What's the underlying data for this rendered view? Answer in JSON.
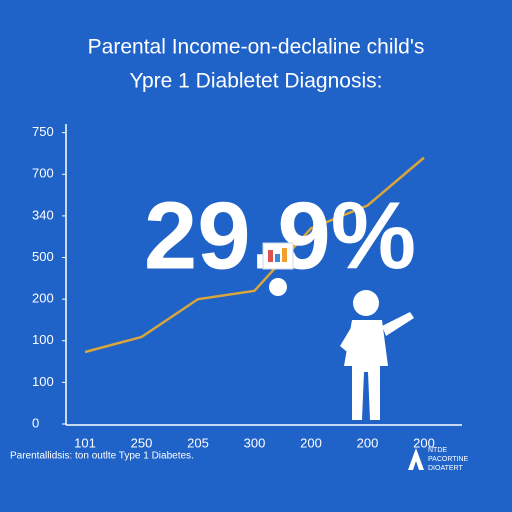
{
  "chart_data": {
    "type": "line",
    "title": "Parental Income-on-declaline child's",
    "subtitle": "Ypre 1 Diabletet Diagnosis:",
    "annotation": "29.9%",
    "footnote": "Parentallidsis: ton outlte Type 1 Diabetes.",
    "logo": [
      "NTDE",
      "PACORTINE",
      "DIOATERT"
    ],
    "categories": [
      "101",
      "250",
      "205",
      "300",
      "200",
      "200",
      "200"
    ],
    "series": [
      {
        "color": "#d9a63a",
        "values": [
          173,
          209,
          300,
          320,
          470,
          525,
          640
        ]
      }
    ],
    "ylim": [
      0,
      740
    ],
    "yticks": [
      0,
      100,
      {
        "value": 200,
        "label": "100"
      },
      {
        "value": 300,
        "label": "200"
      },
      {
        "value": 400,
        "label": "500"
      },
      {
        "value": 500,
        "label": "340"
      },
      {
        "value": 600,
        "label": "700"
      },
      {
        "value": 700,
        "label": "750"
      }
    ]
  }
}
